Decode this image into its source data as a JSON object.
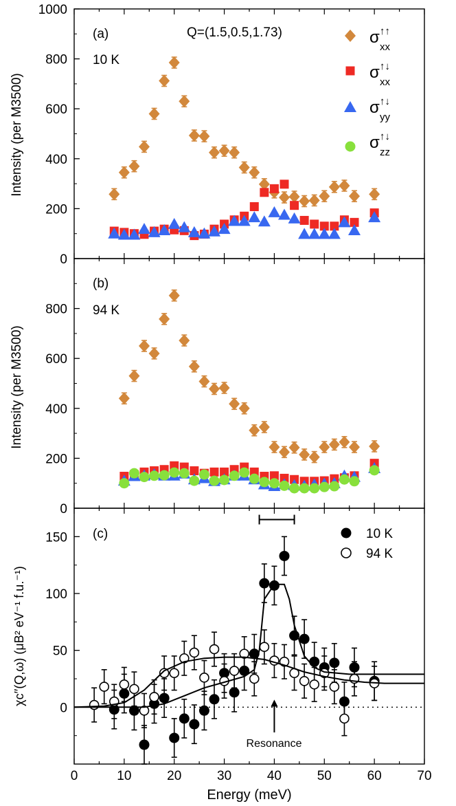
{
  "chart_data": [
    {
      "panel": "a",
      "type": "scatter",
      "panel_label": "(a)",
      "temperature_label": "10 K",
      "q_label": "Q=(1.5,0.5,1.73)",
      "ylabel": "Intensity (per M3500)",
      "xlim": [
        0,
        70
      ],
      "ylim": [
        0,
        1000
      ],
      "yticks": [
        "0",
        "200",
        "400",
        "600",
        "800",
        "1000"
      ],
      "legend": [
        {
          "series": "xx_uu",
          "base": "σ",
          "sup": "↑↑",
          "sub": "xx"
        },
        {
          "series": "xx_ud",
          "base": "σ",
          "sup": "↑↓",
          "sub": "xx"
        },
        {
          "series": "yy_ud",
          "base": "σ",
          "sup": "↑↓",
          "sub": "yy"
        },
        {
          "series": "zz_ud",
          "base": "σ",
          "sup": "↑↓",
          "sub": "zz"
        }
      ],
      "series": [
        {
          "name": "xx_uu",
          "marker": "diamond",
          "color": "#d2883c",
          "x": [
            8,
            10,
            12,
            14,
            16,
            18,
            20,
            22,
            24,
            26,
            28,
            30,
            32,
            34,
            36,
            38,
            40,
            42,
            44,
            46,
            48,
            50,
            52,
            54,
            56,
            60
          ],
          "y": [
            258,
            345,
            370,
            448,
            580,
            712,
            785,
            630,
            493,
            490,
            425,
            432,
            425,
            365,
            345,
            298,
            265,
            245,
            248,
            230,
            233,
            250,
            287,
            292,
            250,
            258
          ],
          "err": 22
        },
        {
          "name": "xx_ud",
          "marker": "square",
          "color": "#ee2a24",
          "x": [
            8,
            10,
            12,
            14,
            16,
            18,
            20,
            22,
            24,
            26,
            28,
            30,
            32,
            34,
            36,
            38,
            40,
            42,
            44,
            46,
            48,
            50,
            52,
            54,
            56,
            60
          ],
          "y": [
            110,
            105,
            100,
            97,
            110,
            118,
            115,
            112,
            92,
            98,
            118,
            138,
            155,
            170,
            208,
            265,
            280,
            298,
            213,
            153,
            138,
            130,
            130,
            155,
            145,
            183
          ],
          "err": 0
        },
        {
          "name": "yy_ud",
          "marker": "triangle",
          "color": "#3868f0",
          "x": [
            8,
            10,
            12,
            14,
            16,
            18,
            20,
            22,
            24,
            26,
            28,
            30,
            32,
            34,
            36,
            38,
            40,
            42,
            44,
            46,
            48,
            50,
            52,
            54,
            56,
            60
          ],
          "y": [
            100,
            95,
            95,
            118,
            105,
            113,
            138,
            125,
            105,
            100,
            108,
            118,
            150,
            150,
            165,
            148,
            185,
            175,
            160,
            98,
            98,
            98,
            98,
            145,
            113,
            165
          ],
          "err": 0
        }
      ]
    },
    {
      "panel": "b",
      "type": "scatter",
      "panel_label": "(b)",
      "temperature_label": "94 K",
      "ylabel": "Intensity (per M3500)",
      "xlim": [
        0,
        70
      ],
      "ylim": [
        0,
        1000
      ],
      "yticks": [
        "0",
        "200",
        "400",
        "600",
        "800"
      ],
      "series": [
        {
          "name": "xx_uu",
          "marker": "diamond",
          "color": "#d2883c",
          "x": [
            10,
            12,
            14,
            16,
            18,
            20,
            22,
            24,
            26,
            28,
            30,
            32,
            34,
            36,
            38,
            40,
            42,
            44,
            46,
            48,
            50,
            52,
            54,
            56,
            60
          ],
          "y": [
            440,
            530,
            650,
            620,
            758,
            852,
            672,
            568,
            508,
            478,
            482,
            418,
            400,
            312,
            325,
            245,
            225,
            243,
            215,
            205,
            245,
            255,
            265,
            245,
            248
          ],
          "err": 22
        },
        {
          "name": "xx_ud",
          "marker": "square",
          "color": "#ee2a24",
          "x": [
            10,
            12,
            14,
            16,
            18,
            20,
            22,
            24,
            26,
            28,
            30,
            32,
            34,
            36,
            38,
            40,
            42,
            44,
            46,
            48,
            50,
            52,
            54,
            56,
            60
          ],
          "y": [
            128,
            135,
            145,
            150,
            155,
            170,
            165,
            150,
            140,
            145,
            145,
            155,
            165,
            145,
            128,
            130,
            120,
            115,
            108,
            108,
            110,
            118,
            122,
            130,
            180
          ],
          "err": 0
        },
        {
          "name": "yy_ud",
          "marker": "triangle",
          "color": "#3868f0",
          "x": [
            10,
            12,
            14,
            16,
            18,
            20,
            22,
            24,
            26,
            28,
            30,
            32,
            34,
            36,
            38,
            40,
            42,
            44,
            46,
            48,
            50,
            52,
            54,
            56,
            60
          ],
          "y": [
            110,
            128,
            130,
            135,
            130,
            130,
            138,
            115,
            120,
            108,
            115,
            130,
            130,
            115,
            95,
            88,
            95,
            92,
            90,
            95,
            98,
            100,
            130,
            125,
            160
          ],
          "err": 0
        },
        {
          "name": "zz_ud",
          "marker": "circle",
          "color": "#88e03c",
          "x": [
            10,
            12,
            14,
            16,
            18,
            20,
            22,
            24,
            26,
            28,
            30,
            32,
            34,
            36,
            38,
            40,
            42,
            44,
            46,
            48,
            50,
            52,
            54,
            56,
            60
          ],
          "y": [
            100,
            140,
            125,
            130,
            132,
            143,
            140,
            110,
            135,
            110,
            113,
            130,
            143,
            118,
            105,
            100,
            90,
            80,
            80,
            80,
            85,
            88,
            115,
            108,
            152
          ],
          "err": 0
        }
      ]
    },
    {
      "panel": "c",
      "type": "scatter",
      "panel_label": "(c)",
      "ylabel": "χc′′(Q,ω) (μB² eV⁻¹ f.u.⁻¹)",
      "xlabel": "Energy (meV)",
      "xlim": [
        0,
        70
      ],
      "ylim": [
        -50,
        175
      ],
      "xticks": [
        "0",
        "10",
        "20",
        "30",
        "40",
        "50",
        "60",
        "70"
      ],
      "yticks": [
        "0",
        "50",
        "100",
        "150"
      ],
      "annotation": "Resonance",
      "resonance_energy": 40,
      "resolution_bar": [
        37,
        44
      ],
      "resolution_bar_y": 165,
      "legend": [
        {
          "series": "10K",
          "label": "10 K"
        },
        {
          "series": "94K",
          "label": "94 K"
        }
      ],
      "series": [
        {
          "name": "10K",
          "marker": "filled-circle",
          "color": "#000000",
          "x": [
            8,
            10,
            12,
            14,
            16,
            18,
            20,
            22,
            24,
            26,
            28,
            30,
            32,
            34,
            36,
            38,
            40,
            42,
            44,
            46,
            48,
            50,
            52,
            54,
            56,
            60
          ],
          "y": [
            -2,
            12,
            -3,
            -33,
            3,
            8,
            -27,
            -10,
            -15,
            -3,
            7,
            30,
            13,
            32,
            47,
            109,
            107,
            133,
            63,
            60,
            40,
            35,
            39,
            5,
            35,
            23
          ],
          "err": 17
        },
        {
          "name": "94K",
          "marker": "open-circle",
          "color": "#000000",
          "x": [
            4,
            6,
            8,
            10,
            12,
            14,
            16,
            18,
            20,
            22,
            24,
            26,
            28,
            30,
            32,
            34,
            36,
            38,
            40,
            42,
            44,
            46,
            48,
            50,
            52,
            54,
            56,
            60
          ],
          "y": [
            2,
            18,
            5,
            20,
            16,
            -3,
            9,
            30,
            30,
            43,
            48,
            26,
            51,
            23,
            32,
            47,
            25,
            53,
            41,
            40,
            30,
            23,
            20,
            30,
            18,
            -10,
            25,
            21
          ],
          "err": 15
        },
        {
          "name": "10K-fit",
          "type": "line",
          "x": [
            0,
            14,
            18,
            22,
            26,
            30,
            34,
            36,
            37,
            38,
            40,
            42,
            43,
            44,
            46,
            48,
            50,
            55,
            60,
            62,
            70
          ],
          "y": [
            0,
            0,
            3,
            10,
            17,
            22,
            27,
            33,
            50,
            95,
            108,
            108,
            95,
            72,
            45,
            35,
            31,
            29,
            29,
            29,
            29
          ]
        },
        {
          "name": "94K-fit",
          "type": "line",
          "x": [
            0,
            6,
            10,
            14,
            18,
            22,
            26,
            30,
            34,
            38,
            42,
            46,
            50,
            54,
            58,
            62,
            70
          ],
          "y": [
            0,
            1,
            4,
            15,
            32,
            40,
            43,
            44,
            44,
            42,
            37,
            31,
            27,
            24,
            22,
            21,
            21
          ]
        }
      ]
    }
  ]
}
